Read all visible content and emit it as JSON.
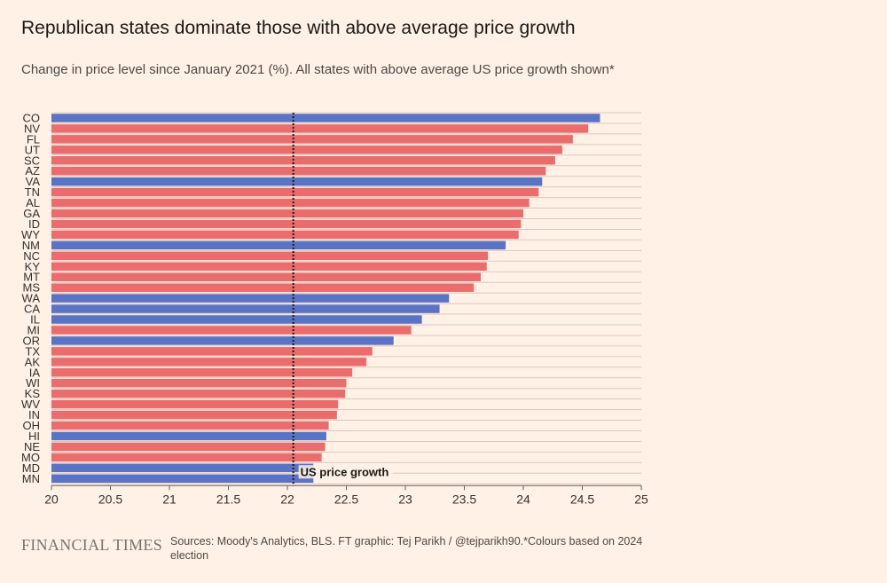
{
  "title": "Republican states dominate those with above average price growth",
  "subtitle": "Change in price level since January 2021 (%). All states with above average US price growth shown*",
  "brand": "FINANCIAL TIMES",
  "source": "Sources: Moody's Analytics, BLS. FT graphic: Tej Parikh / @tejparikh90.*Colours based on 2024 election",
  "colors": {
    "democrat": "#5b73c4",
    "republican": "#ea6c6c",
    "background": "#fff1e5",
    "grid": "#d8c9bb",
    "reference": "#1a1817"
  },
  "chart_data": {
    "type": "bar",
    "orientation": "horizontal",
    "title": "Republican states dominate those with above average price growth",
    "xlabel": "",
    "ylabel": "",
    "xlim": [
      20,
      25
    ],
    "xticks": [
      20,
      20.5,
      21,
      21.5,
      22,
      22.5,
      23,
      23.5,
      24,
      24.5,
      25
    ],
    "xtick_labels": [
      "20",
      "20.5",
      "21",
      "21.5",
      "22",
      "22.5",
      "23",
      "23.5",
      "24",
      "24.5",
      "25"
    ],
    "reference_line": {
      "value": 22.05,
      "label": "US price growth"
    },
    "categories": [
      "CO",
      "NV",
      "FL",
      "UT",
      "SC",
      "AZ",
      "VA",
      "TN",
      "AL",
      "GA",
      "ID",
      "WY",
      "NM",
      "NC",
      "KY",
      "MT",
      "MS",
      "WA",
      "CA",
      "IL",
      "MI",
      "OR",
      "TX",
      "AK",
      "IA",
      "WI",
      "KS",
      "WV",
      "IN",
      "OH",
      "HI",
      "NE",
      "MO",
      "MD",
      "MN"
    ],
    "values": [
      24.65,
      24.55,
      24.42,
      24.33,
      24.27,
      24.19,
      24.16,
      24.13,
      24.05,
      24.0,
      23.98,
      23.96,
      23.85,
      23.7,
      23.69,
      23.64,
      23.58,
      23.37,
      23.29,
      23.14,
      23.05,
      22.9,
      22.72,
      22.67,
      22.55,
      22.5,
      22.49,
      22.43,
      22.42,
      22.35,
      22.33,
      22.32,
      22.29,
      22.22,
      22.22
    ],
    "party": [
      "D",
      "R",
      "R",
      "R",
      "R",
      "R",
      "D",
      "R",
      "R",
      "R",
      "R",
      "R",
      "D",
      "R",
      "R",
      "R",
      "R",
      "D",
      "D",
      "D",
      "R",
      "D",
      "R",
      "R",
      "R",
      "R",
      "R",
      "R",
      "R",
      "R",
      "D",
      "R",
      "R",
      "D",
      "D"
    ]
  }
}
